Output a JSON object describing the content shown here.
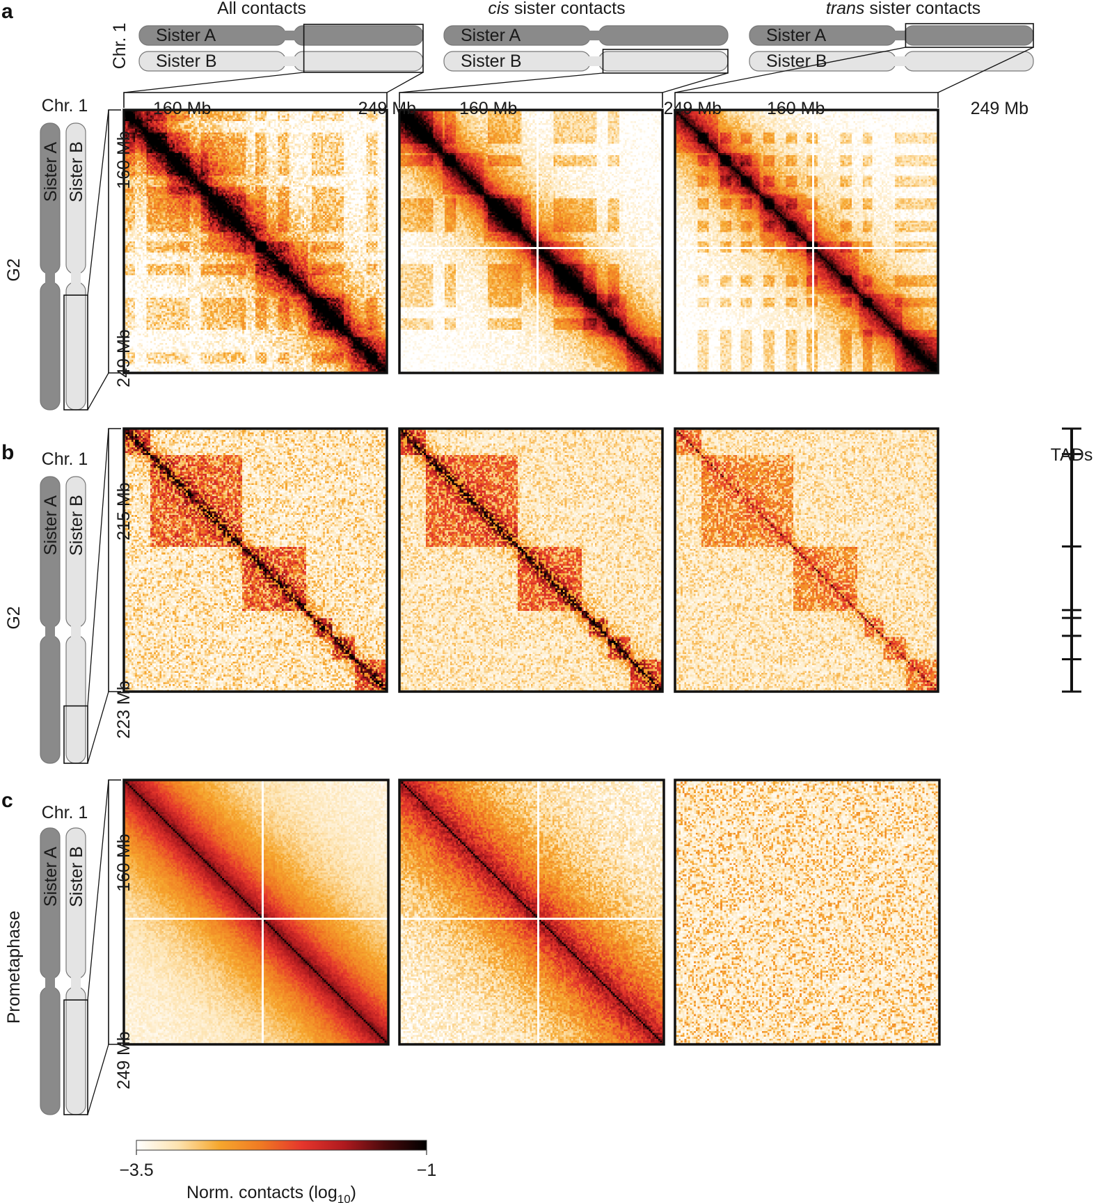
{
  "colors": {
    "sister_a": "#8a8a8a",
    "sister_b": "#e4e4e4",
    "frame": "#111111",
    "scale": [
      "#ffffff",
      "#fde3b0",
      "#f6a72e",
      "#f07a23",
      "#e5362c",
      "#b01a1f",
      "#4a0a0c",
      "#000000"
    ]
  },
  "labels": {
    "chr": "Chr. 1",
    "sister_a": "Sister A",
    "sister_b": "Sister B",
    "tads": "TADs"
  },
  "columns": [
    {
      "pre": "",
      "italic": "",
      "post": "All contacts"
    },
    {
      "pre": "",
      "italic": "cis",
      "post": " sister contacts"
    },
    {
      "pre": "",
      "italic": "trans",
      "post": " sister contacts"
    }
  ],
  "panels": [
    {
      "letter": "a",
      "stage": "G2",
      "top_ticks": [
        [
          "160 Mb",
          "249 Mb"
        ],
        [
          "160 Mb",
          "249 Mb"
        ],
        [
          "160 Mb",
          "249  Mb"
        ]
      ],
      "left_ticks": [
        "160 Mb",
        "249 Mb"
      ],
      "maps": [
        {
          "name": "all-contacts-g2-wide",
          "style": "wide",
          "diag": 0.55,
          "noise": 0.55,
          "tads": [
            0.0,
            0.16,
            0.32,
            0.5,
            0.7,
            0.86,
            1.0
          ],
          "cross": false
        },
        {
          "name": "cis-contacts-g2-wide",
          "style": "wide",
          "diag": 0.55,
          "noise": 0.35,
          "tads": [
            0.0,
            0.16,
            0.32,
            0.5,
            0.7,
            0.86,
            1.0
          ],
          "cross": true
        },
        {
          "name": "trans-contacts-g2-wide",
          "style": "wide",
          "diag": 0.42,
          "noise": 0.32,
          "tads": [
            0.0,
            0.16,
            0.32,
            0.5,
            0.7,
            0.86,
            1.0
          ],
          "cross": true
        }
      ]
    },
    {
      "letter": "b",
      "stage": "G2",
      "left_ticks": [
        "215 Mb",
        "223 Mb"
      ],
      "tad_ticks": [
        0.0,
        0.097,
        0.448,
        0.69,
        0.72,
        0.788,
        0.877,
        1.0
      ],
      "maps": [
        {
          "name": "all-contacts-g2-zoom",
          "style": "zoom",
          "diag": 0.85,
          "noise": 0.5,
          "tads": [
            0.0,
            0.097,
            0.448,
            0.69,
            0.72,
            0.788,
            0.877,
            1.0
          ],
          "cross": false
        },
        {
          "name": "cis-contacts-g2-zoom",
          "style": "zoom",
          "diag": 0.85,
          "noise": 0.35,
          "tads": [
            0.0,
            0.097,
            0.448,
            0.69,
            0.72,
            0.788,
            0.877,
            1.0
          ],
          "cross": false
        },
        {
          "name": "trans-contacts-g2-zoom",
          "style": "zoom",
          "diag": 0.38,
          "noise": 0.35,
          "tads": [
            0.0,
            0.097,
            0.448,
            0.69,
            0.72,
            0.788,
            0.877,
            1.0
          ],
          "cross": false
        }
      ]
    },
    {
      "letter": "c",
      "stage": "Prometaphase",
      "left_ticks": [
        "160 Mb",
        "249 Mb"
      ],
      "maps": [
        {
          "name": "all-contacts-prometaphase",
          "style": "band",
          "diag": 0.75,
          "noise": 0.2,
          "tads": [],
          "cross": true
        },
        {
          "name": "cis-contacts-prometaphase",
          "style": "band",
          "diag": 0.7,
          "noise": 0.45,
          "tads": [],
          "cross": true
        },
        {
          "name": "trans-contacts-prometaphase",
          "style": "flat",
          "diag": 0.0,
          "noise": 0.35,
          "tads": [],
          "cross": false
        }
      ]
    }
  ],
  "colorbar": {
    "min_label": "−3.5",
    "max_label": "−1",
    "title": "Norm. contacts (log",
    "title_sub": "10",
    "title_end": ")",
    "min": -3.5,
    "max": -1
  }
}
